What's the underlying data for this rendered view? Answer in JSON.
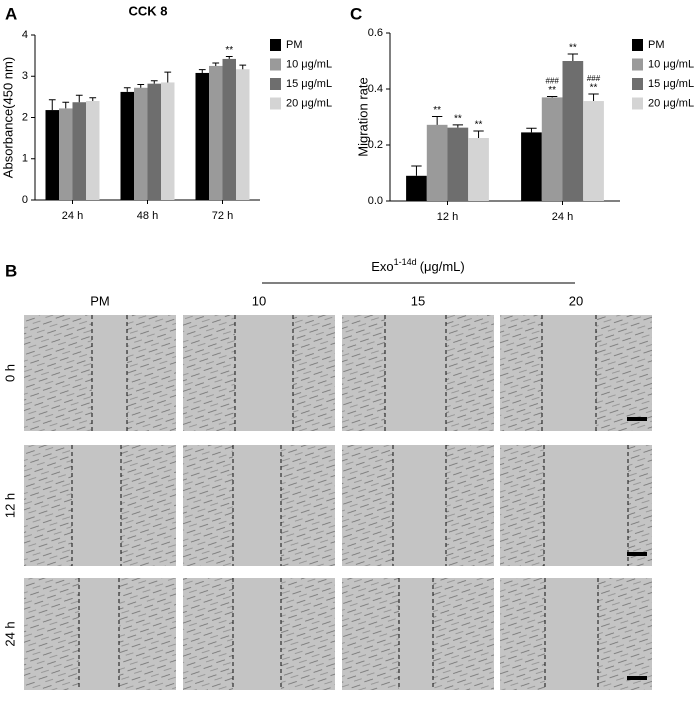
{
  "chart_data": [
    {
      "type": "bar",
      "panel_label": "A",
      "title": "CCK 8",
      "y_label": "Absorbance(450 nm)",
      "categories": [
        "24 h",
        "48 h",
        "72 h"
      ],
      "series": [
        {
          "name": "PM",
          "color": "#000000",
          "values": [
            2.18,
            2.62,
            3.08
          ],
          "errors": [
            0.25,
            0.1,
            0.08
          ],
          "annotations": [
            null,
            null,
            null
          ]
        },
        {
          "name": "10 μg/mL",
          "color": "#9a9a9a",
          "values": [
            2.22,
            2.72,
            3.25
          ],
          "errors": [
            0.15,
            0.08,
            0.07
          ],
          "annotations": [
            null,
            null,
            null
          ]
        },
        {
          "name": "15 μg/mL",
          "color": "#6e6e6e",
          "values": [
            2.37,
            2.82,
            3.42
          ],
          "errors": [
            0.17,
            0.07,
            0.06
          ],
          "annotations": [
            null,
            null,
            [
              "**"
            ]
          ]
        },
        {
          "name": "20 μg/mL",
          "color": "#d4d4d4",
          "values": [
            2.4,
            2.85,
            3.17
          ],
          "errors": [
            0.08,
            0.25,
            0.1
          ],
          "annotations": [
            null,
            null,
            null
          ]
        }
      ],
      "ylim": [
        0,
        4
      ],
      "yticks": [
        0,
        1,
        2,
        3,
        4
      ]
    },
    {
      "type": "bar",
      "panel_label": "C",
      "y_label": "Migration rate",
      "categories": [
        "12 h",
        "24 h"
      ],
      "series": [
        {
          "name": "PM",
          "color": "#000000",
          "values": [
            0.09,
            0.245
          ],
          "errors": [
            0.035,
            0.015
          ],
          "annotations": [
            null,
            null
          ]
        },
        {
          "name": "10 μg/mL",
          "color": "#9a9a9a",
          "values": [
            0.272,
            0.37
          ],
          "errors": [
            0.03,
            0.003
          ],
          "annotations": [
            [
              "**"
            ],
            [
              "###",
              "**"
            ]
          ]
        },
        {
          "name": "15 μg/mL",
          "color": "#6e6e6e",
          "values": [
            0.262,
            0.5
          ],
          "errors": [
            0.01,
            0.025
          ],
          "annotations": [
            [
              "**"
            ],
            [
              "**"
            ]
          ]
        },
        {
          "name": "20 μg/mL",
          "color": "#d4d4d4",
          "values": [
            0.225,
            0.357
          ],
          "errors": [
            0.025,
            0.025
          ],
          "annotations": [
            [
              "**"
            ],
            [
              "###",
              "**"
            ]
          ]
        }
      ],
      "ylim": [
        0,
        0.6
      ],
      "yticks": [
        {
          "value": 0,
          "label": "0.0"
        },
        0.2,
        0.4,
        0.6
      ]
    }
  ],
  "panel_b": {
    "panel_label": "B",
    "group_label": "Exo",
    "group_label_sup": "1-14d",
    "group_label_unit": "(μg/mL)",
    "columns": [
      "PM",
      "10",
      "15",
      "20"
    ],
    "rows": [
      "0 h",
      "12 h",
      "24 h"
    ]
  }
}
